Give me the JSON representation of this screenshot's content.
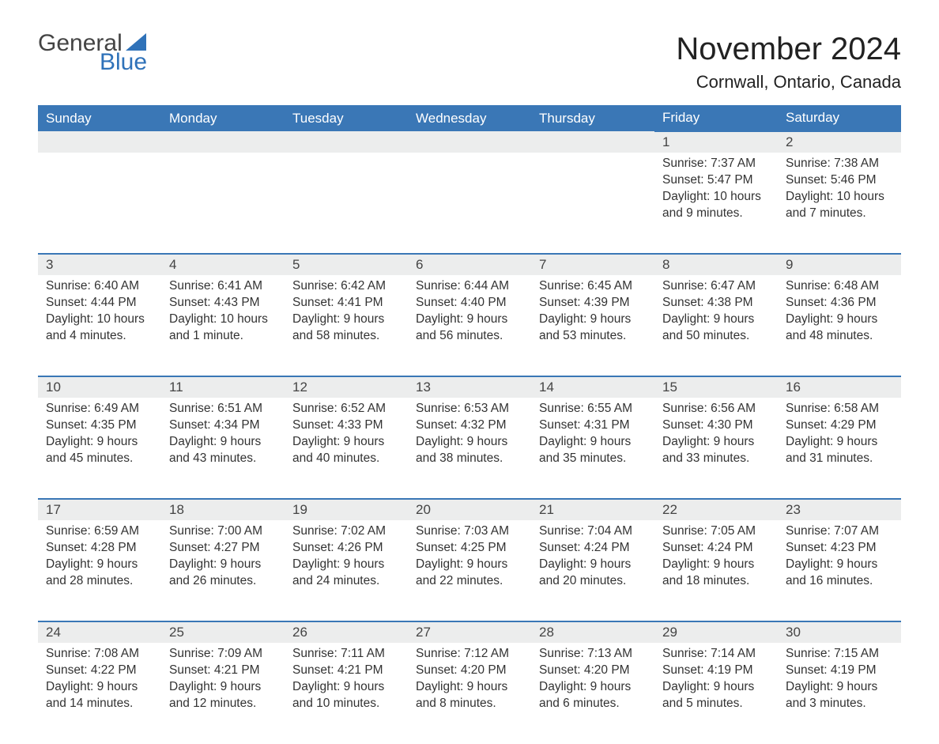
{
  "logo": {
    "text1": "General",
    "text2": "Blue",
    "sail_color": "#2f72b9"
  },
  "header": {
    "month_title": "November 2024",
    "location": "Cornwall, Ontario, Canada"
  },
  "style": {
    "header_bg": "#3a77b6",
    "header_text": "#ffffff",
    "row_border": "#3a77b6",
    "daynum_bg": "#eceded",
    "body_text": "#333333",
    "page_bg": "#ffffff",
    "title_fontsize": 40,
    "location_fontsize": 22,
    "th_fontsize": 17,
    "detail_fontsize": 15.5
  },
  "weekdays": [
    "Sunday",
    "Monday",
    "Tuesday",
    "Wednesday",
    "Thursday",
    "Friday",
    "Saturday"
  ],
  "weeks": [
    [
      null,
      null,
      null,
      null,
      null,
      {
        "day": "1",
        "sunrise": "Sunrise: 7:37 AM",
        "sunset": "Sunset: 5:47 PM",
        "daylight1": "Daylight: 10 hours",
        "daylight2": "and 9 minutes."
      },
      {
        "day": "2",
        "sunrise": "Sunrise: 7:38 AM",
        "sunset": "Sunset: 5:46 PM",
        "daylight1": "Daylight: 10 hours",
        "daylight2": "and 7 minutes."
      }
    ],
    [
      {
        "day": "3",
        "sunrise": "Sunrise: 6:40 AM",
        "sunset": "Sunset: 4:44 PM",
        "daylight1": "Daylight: 10 hours",
        "daylight2": "and 4 minutes."
      },
      {
        "day": "4",
        "sunrise": "Sunrise: 6:41 AM",
        "sunset": "Sunset: 4:43 PM",
        "daylight1": "Daylight: 10 hours",
        "daylight2": "and 1 minute."
      },
      {
        "day": "5",
        "sunrise": "Sunrise: 6:42 AM",
        "sunset": "Sunset: 4:41 PM",
        "daylight1": "Daylight: 9 hours",
        "daylight2": "and 58 minutes."
      },
      {
        "day": "6",
        "sunrise": "Sunrise: 6:44 AM",
        "sunset": "Sunset: 4:40 PM",
        "daylight1": "Daylight: 9 hours",
        "daylight2": "and 56 minutes."
      },
      {
        "day": "7",
        "sunrise": "Sunrise: 6:45 AM",
        "sunset": "Sunset: 4:39 PM",
        "daylight1": "Daylight: 9 hours",
        "daylight2": "and 53 minutes."
      },
      {
        "day": "8",
        "sunrise": "Sunrise: 6:47 AM",
        "sunset": "Sunset: 4:38 PM",
        "daylight1": "Daylight: 9 hours",
        "daylight2": "and 50 minutes."
      },
      {
        "day": "9",
        "sunrise": "Sunrise: 6:48 AM",
        "sunset": "Sunset: 4:36 PM",
        "daylight1": "Daylight: 9 hours",
        "daylight2": "and 48 minutes."
      }
    ],
    [
      {
        "day": "10",
        "sunrise": "Sunrise: 6:49 AM",
        "sunset": "Sunset: 4:35 PM",
        "daylight1": "Daylight: 9 hours",
        "daylight2": "and 45 minutes."
      },
      {
        "day": "11",
        "sunrise": "Sunrise: 6:51 AM",
        "sunset": "Sunset: 4:34 PM",
        "daylight1": "Daylight: 9 hours",
        "daylight2": "and 43 minutes."
      },
      {
        "day": "12",
        "sunrise": "Sunrise: 6:52 AM",
        "sunset": "Sunset: 4:33 PM",
        "daylight1": "Daylight: 9 hours",
        "daylight2": "and 40 minutes."
      },
      {
        "day": "13",
        "sunrise": "Sunrise: 6:53 AM",
        "sunset": "Sunset: 4:32 PM",
        "daylight1": "Daylight: 9 hours",
        "daylight2": "and 38 minutes."
      },
      {
        "day": "14",
        "sunrise": "Sunrise: 6:55 AM",
        "sunset": "Sunset: 4:31 PM",
        "daylight1": "Daylight: 9 hours",
        "daylight2": "and 35 minutes."
      },
      {
        "day": "15",
        "sunrise": "Sunrise: 6:56 AM",
        "sunset": "Sunset: 4:30 PM",
        "daylight1": "Daylight: 9 hours",
        "daylight2": "and 33 minutes."
      },
      {
        "day": "16",
        "sunrise": "Sunrise: 6:58 AM",
        "sunset": "Sunset: 4:29 PM",
        "daylight1": "Daylight: 9 hours",
        "daylight2": "and 31 minutes."
      }
    ],
    [
      {
        "day": "17",
        "sunrise": "Sunrise: 6:59 AM",
        "sunset": "Sunset: 4:28 PM",
        "daylight1": "Daylight: 9 hours",
        "daylight2": "and 28 minutes."
      },
      {
        "day": "18",
        "sunrise": "Sunrise: 7:00 AM",
        "sunset": "Sunset: 4:27 PM",
        "daylight1": "Daylight: 9 hours",
        "daylight2": "and 26 minutes."
      },
      {
        "day": "19",
        "sunrise": "Sunrise: 7:02 AM",
        "sunset": "Sunset: 4:26 PM",
        "daylight1": "Daylight: 9 hours",
        "daylight2": "and 24 minutes."
      },
      {
        "day": "20",
        "sunrise": "Sunrise: 7:03 AM",
        "sunset": "Sunset: 4:25 PM",
        "daylight1": "Daylight: 9 hours",
        "daylight2": "and 22 minutes."
      },
      {
        "day": "21",
        "sunrise": "Sunrise: 7:04 AM",
        "sunset": "Sunset: 4:24 PM",
        "daylight1": "Daylight: 9 hours",
        "daylight2": "and 20 minutes."
      },
      {
        "day": "22",
        "sunrise": "Sunrise: 7:05 AM",
        "sunset": "Sunset: 4:24 PM",
        "daylight1": "Daylight: 9 hours",
        "daylight2": "and 18 minutes."
      },
      {
        "day": "23",
        "sunrise": "Sunrise: 7:07 AM",
        "sunset": "Sunset: 4:23 PM",
        "daylight1": "Daylight: 9 hours",
        "daylight2": "and 16 minutes."
      }
    ],
    [
      {
        "day": "24",
        "sunrise": "Sunrise: 7:08 AM",
        "sunset": "Sunset: 4:22 PM",
        "daylight1": "Daylight: 9 hours",
        "daylight2": "and 14 minutes."
      },
      {
        "day": "25",
        "sunrise": "Sunrise: 7:09 AM",
        "sunset": "Sunset: 4:21 PM",
        "daylight1": "Daylight: 9 hours",
        "daylight2": "and 12 minutes."
      },
      {
        "day": "26",
        "sunrise": "Sunrise: 7:11 AM",
        "sunset": "Sunset: 4:21 PM",
        "daylight1": "Daylight: 9 hours",
        "daylight2": "and 10 minutes."
      },
      {
        "day": "27",
        "sunrise": "Sunrise: 7:12 AM",
        "sunset": "Sunset: 4:20 PM",
        "daylight1": "Daylight: 9 hours",
        "daylight2": "and 8 minutes."
      },
      {
        "day": "28",
        "sunrise": "Sunrise: 7:13 AM",
        "sunset": "Sunset: 4:20 PM",
        "daylight1": "Daylight: 9 hours",
        "daylight2": "and 6 minutes."
      },
      {
        "day": "29",
        "sunrise": "Sunrise: 7:14 AM",
        "sunset": "Sunset: 4:19 PM",
        "daylight1": "Daylight: 9 hours",
        "daylight2": "and 5 minutes."
      },
      {
        "day": "30",
        "sunrise": "Sunrise: 7:15 AM",
        "sunset": "Sunset: 4:19 PM",
        "daylight1": "Daylight: 9 hours",
        "daylight2": "and 3 minutes."
      }
    ]
  ]
}
